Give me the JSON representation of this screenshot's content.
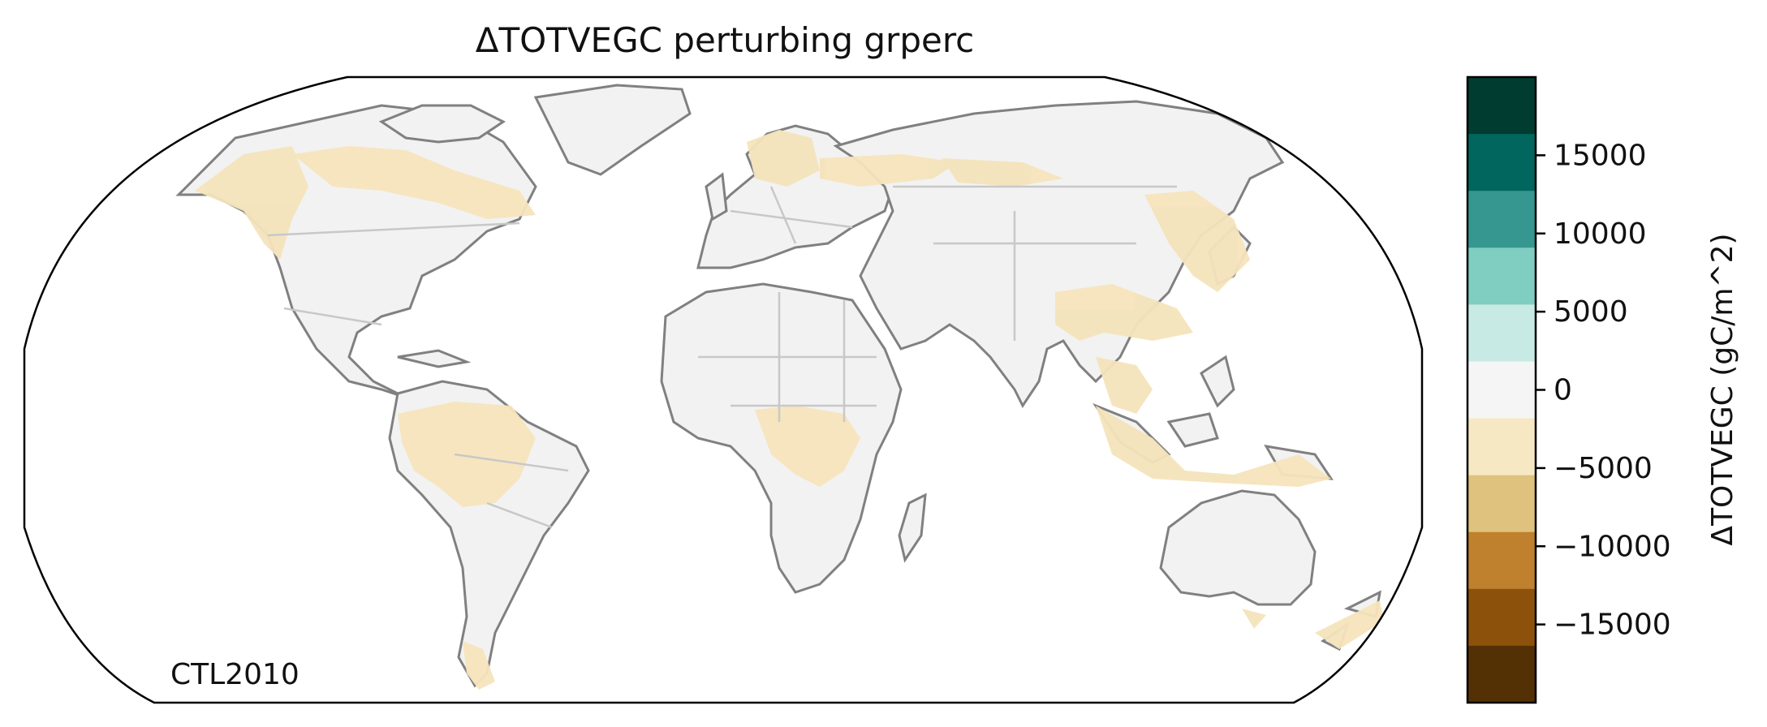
{
  "map": {
    "title": "ΔTOTVEGC perturbing grperc",
    "corner_label": "CTL2010",
    "projection": "Robinson",
    "land_color": "#f2f2f2",
    "coastline_color": "#808080",
    "border_color": "#c8c8c8",
    "highlight_color": "#f5e4bc"
  },
  "colorbar": {
    "label": "ΔTOTVEGC (gC/m^2)",
    "ticks": [
      "15000",
      "10000",
      "5000",
      "0",
      "−5000",
      "−10000",
      "−15000"
    ],
    "bin_colors_top_to_bottom": [
      "#013c30",
      "#01665e",
      "#35978f",
      "#80cdc1",
      "#c7eae5",
      "#f5f5f5",
      "#f6e8c3",
      "#dfc27d",
      "#bf812d",
      "#8c510a",
      "#543005"
    ],
    "range": [
      -20000,
      20000
    ]
  },
  "negative_regions": [
    "western North America",
    "Canada / Great Lakes",
    "Scandinavia",
    "western Russia",
    "Siberia",
    "northeast Asia / Korea / Japan",
    "southern China",
    "Southeast Asia",
    "Indonesia / New Guinea",
    "Amazon basin",
    "central Africa (Congo)",
    "Patagonia",
    "New Zealand"
  ]
}
